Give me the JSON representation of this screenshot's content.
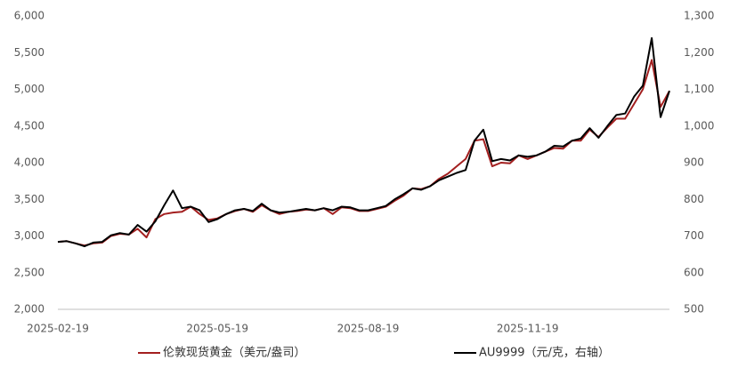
{
  "chart_data": {
    "type": "line",
    "categories": [
      "2025-02-19",
      null,
      null,
      null,
      null,
      null,
      null,
      null,
      null,
      null,
      null,
      null,
      null,
      null,
      null,
      null,
      null,
      null,
      "2025-05-19",
      null,
      null,
      null,
      null,
      null,
      null,
      null,
      null,
      null,
      null,
      null,
      null,
      null,
      null,
      null,
      null,
      "2025-08-19",
      null,
      null,
      null,
      null,
      null,
      null,
      null,
      null,
      null,
      null,
      null,
      null,
      null,
      null,
      null,
      null,
      null,
      "2025-11-19",
      null,
      null,
      null,
      null,
      null,
      null,
      null,
      null,
      null,
      null,
      null,
      null,
      null,
      null,
      null,
      null
    ],
    "series": [
      {
        "name": "伦敦现货黄金（美元/盎司）",
        "color": "#a31f1f",
        "values": [
          2920,
          2930,
          2900,
          2870,
          2900,
          2910,
          3000,
          3030,
          3020,
          3100,
          2980,
          3230,
          3300,
          3320,
          3330,
          3400,
          3300,
          3220,
          3240,
          3300,
          3340,
          3370,
          3330,
          3420,
          3350,
          3300,
          3330,
          3340,
          3360,
          3350,
          3380,
          3300,
          3390,
          3380,
          3340,
          3340,
          3370,
          3400,
          3480,
          3550,
          3650,
          3640,
          3680,
          3780,
          3850,
          3950,
          4050,
          4300,
          4320,
          3950,
          4000,
          3990,
          4100,
          4050,
          4100,
          4150,
          4200,
          4190,
          4300,
          4300,
          4450,
          4350,
          4480,
          4600,
          4600,
          4800,
          5000,
          5400,
          4760,
          4980
        ]
      },
      {
        "name": "AU9999（元/克，右轴）",
        "color": "#000000",
        "axis": "y2",
        "values": [
          684,
          686,
          680,
          672,
          682,
          684,
          702,
          708,
          704,
          730,
          712,
          740,
          784,
          824,
          776,
          780,
          770,
          738,
          746,
          760,
          770,
          774,
          768,
          788,
          770,
          764,
          766,
          770,
          774,
          770,
          776,
          770,
          780,
          778,
          770,
          770,
          776,
          782,
          800,
          814,
          830,
          826,
          836,
          852,
          862,
          872,
          880,
          960,
          990,
          904,
          910,
          906,
          920,
          916,
          920,
          930,
          946,
          944,
          960,
          966,
          994,
          968,
          1000,
          1030,
          1034,
          1080,
          1110,
          1240,
          1024,
          1096
        ]
      }
    ],
    "ylim": [
      2000,
      6000
    ],
    "yticks": [
      {
        "value": 2000,
        "label": "2,000"
      },
      {
        "value": 2500,
        "label": "2,500"
      },
      {
        "value": 3000,
        "label": "3,000"
      },
      {
        "value": 3500,
        "label": "3,500"
      },
      {
        "value": 4000,
        "label": "4,000"
      },
      {
        "value": 4500,
        "label": "4,500"
      },
      {
        "value": 5000,
        "label": "5,000"
      },
      {
        "value": 5500,
        "label": "5,500"
      },
      {
        "value": 6000,
        "label": "6,000"
      }
    ],
    "y2lim": [
      500,
      1300
    ],
    "y2ticks": [
      500,
      600,
      700,
      800,
      900,
      {
        "value": 1000,
        "label": "1,000"
      },
      {
        "value": 1100,
        "label": "1,100"
      },
      {
        "value": 1200,
        "label": "1,200"
      },
      {
        "value": 1300,
        "label": "1,300"
      }
    ],
    "legend": "bottom"
  }
}
